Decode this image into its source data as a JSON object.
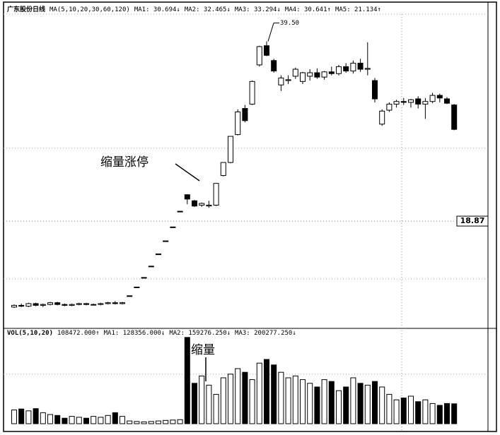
{
  "chart_data": [
    {
      "type": "candlestick",
      "title": "广东股份日线",
      "indicators": [
        "MA(5,10,20,30,60,120)",
        "MA1: 30.694↓",
        "MA2: 32.465↓",
        "MA3: 33.294↓",
        "MA4: 30.641↑",
        "MA5: 21.134↑"
      ],
      "ohlc": [
        [
          9.0,
          9.3,
          8.9,
          9.2
        ],
        [
          9.2,
          9.4,
          9.0,
          9.1
        ],
        [
          9.1,
          9.5,
          9.0,
          9.4
        ],
        [
          9.4,
          9.5,
          9.1,
          9.2
        ],
        [
          9.2,
          9.4,
          9.0,
          9.3
        ],
        [
          9.3,
          9.6,
          9.2,
          9.5
        ],
        [
          9.5,
          9.6,
          9.2,
          9.3
        ],
        [
          9.3,
          9.4,
          9.1,
          9.2
        ],
        [
          9.2,
          9.4,
          9.1,
          9.3
        ],
        [
          9.3,
          9.5,
          9.2,
          9.4
        ],
        [
          9.4,
          9.5,
          9.2,
          9.3
        ],
        [
          9.3,
          9.4,
          9.2,
          9.3
        ],
        [
          9.3,
          9.5,
          9.2,
          9.4
        ],
        [
          9.4,
          9.6,
          9.3,
          9.5
        ],
        [
          9.5,
          9.7,
          9.3,
          9.4
        ],
        [
          9.4,
          9.6,
          9.3,
          9.5
        ],
        [
          10.3,
          10.3,
          10.3,
          10.3
        ],
        [
          11.3,
          11.3,
          11.3,
          11.3
        ],
        [
          12.4,
          12.4,
          12.4,
          12.4
        ],
        [
          13.7,
          13.7,
          13.7,
          13.7
        ],
        [
          15.1,
          15.1,
          15.1,
          15.1
        ],
        [
          16.6,
          16.6,
          16.6,
          16.6
        ],
        [
          18.2,
          18.2,
          18.2,
          18.2
        ],
        [
          20.0,
          20.0,
          20.0,
          20.0
        ],
        [
          21.9,
          21.9,
          20.8,
          21.4
        ],
        [
          21.2,
          21.3,
          20.5,
          20.6
        ],
        [
          20.7,
          21.0,
          20.5,
          20.9
        ],
        [
          20.6,
          21.2,
          20.4,
          20.7
        ],
        [
          20.7,
          23.2,
          20.6,
          23.2
        ],
        [
          24.1,
          25.6,
          24.0,
          25.6
        ],
        [
          25.6,
          28.6,
          25.5,
          28.6
        ],
        [
          28.8,
          31.7,
          28.7,
          31.4
        ],
        [
          31.8,
          32.2,
          30.2,
          30.4
        ],
        [
          32.3,
          35.0,
          32.2,
          34.9
        ],
        [
          36.8,
          39.0,
          36.6,
          38.9
        ],
        [
          39.0,
          39.5,
          37.8,
          37.9
        ],
        [
          37.3,
          37.5,
          35.9,
          36.1
        ],
        [
          34.5,
          35.6,
          33.8,
          35.3
        ],
        [
          35.0,
          35.6,
          34.6,
          35.1
        ],
        [
          35.5,
          36.5,
          35.2,
          36.3
        ],
        [
          34.9,
          36.0,
          34.6,
          35.9
        ],
        [
          35.5,
          36.3,
          35.0,
          35.9
        ],
        [
          35.9,
          36.4,
          35.2,
          35.4
        ],
        [
          35.4,
          36.1,
          35.1,
          36.0
        ],
        [
          36.0,
          36.6,
          35.6,
          35.8
        ],
        [
          35.8,
          36.8,
          35.6,
          36.6
        ],
        [
          36.6,
          37.0,
          35.9,
          36.1
        ],
        [
          36.1,
          37.3,
          35.8,
          37.0
        ],
        [
          37.0,
          37.5,
          36.0,
          36.3
        ],
        [
          36.3,
          39.4,
          35.6,
          36.4
        ],
        [
          35.0,
          35.3,
          32.5,
          32.9
        ],
        [
          30.0,
          31.7,
          29.8,
          31.5
        ],
        [
          31.6,
          32.5,
          31.4,
          32.3
        ],
        [
          32.3,
          32.8,
          31.9,
          32.6
        ],
        [
          32.6,
          33.0,
          32.2,
          32.5
        ],
        [
          32.5,
          32.9,
          31.9,
          32.8
        ],
        [
          32.9,
          33.2,
          31.8,
          32.3
        ],
        [
          32.3,
          33.0,
          30.6,
          32.6
        ],
        [
          32.6,
          33.6,
          32.4,
          33.3
        ],
        [
          33.3,
          33.5,
          32.5,
          33.0
        ],
        [
          32.9,
          33.1,
          32.3,
          32.4
        ],
        [
          32.2,
          32.3,
          29.3,
          29.4
        ]
      ],
      "ylim": [
        6.8,
        43.6
      ],
      "high_label": {
        "value": 39.5,
        "label": "39.50"
      },
      "cursor_price": {
        "value": 18.87,
        "label": "18.87"
      },
      "annotations": [
        "缩量涨停"
      ],
      "up_color": "#ffffff",
      "down_color": "#000000"
    },
    {
      "type": "bar",
      "title": "VOL(5,10,20)",
      "indicators": [
        "108472.000↑",
        "MA1: 128356.000↓",
        "MA2: 159276.250↓",
        "MA3: 200277.250↓"
      ],
      "values": [
        75000,
        80000,
        70000,
        82000,
        60000,
        50000,
        45000,
        30000,
        40000,
        35000,
        30000,
        40000,
        35000,
        45000,
        60000,
        40000,
        15000,
        12000,
        10000,
        12000,
        15000,
        18000,
        20000,
        22000,
        470000,
        220000,
        260000,
        210000,
        160000,
        250000,
        270000,
        300000,
        280000,
        240000,
        330000,
        350000,
        320000,
        280000,
        250000,
        260000,
        240000,
        220000,
        200000,
        240000,
        230000,
        180000,
        200000,
        250000,
        220000,
        210000,
        230000,
        200000,
        160000,
        130000,
        140000,
        150000,
        120000,
        130000,
        110000,
        100000,
        110000,
        108472
      ],
      "ylim": [
        0,
        500000
      ],
      "annotations": [
        "缩量"
      ]
    }
  ]
}
